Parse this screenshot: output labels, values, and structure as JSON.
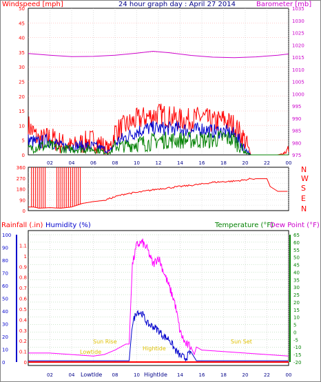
{
  "header": {
    "left_label": "Windspeed [mph]",
    "center_label": "24 hour graph day : April 27 2014",
    "right_label": "Barometer [mb]"
  },
  "dir_letters": [
    "N",
    "W",
    "S",
    "E",
    "N"
  ],
  "bottom": {
    "rain_label": "Rainfall (.in)",
    "hum_label": "Humidity (%)",
    "temp_label": "Temperature (°F)",
    "dew_label": "Dew Point (°F)",
    "sunrise": "Sun Rise",
    "sunset": "Sun Set",
    "lowtide": "Lowtide",
    "hightide": "Hightide",
    "lowtide_axis": "LowtIde",
    "hightide_axis": "HightIde"
  },
  "colors": {
    "wind": "#ff0000",
    "gust": "#0000cc",
    "avg": "#008000",
    "baro": "#cc00cc",
    "hum": "#0000cc",
    "temp": "#008000",
    "dew": "#ff00ff",
    "rain": "#ff0000",
    "header_wind": "#ff0000",
    "header_baro": "#cc00cc"
  },
  "chart_data": [
    {
      "type": "line",
      "title": "24 hour graph day : April 27 2014",
      "xlabel": "",
      "x_ticks": [
        "02",
        "04",
        "06",
        "08",
        "10",
        "12",
        "14",
        "16",
        "18",
        "20",
        "22",
        "00"
      ],
      "ylabel": "Windspeed [mph]",
      "ylim": [
        0,
        50
      ],
      "y_ticks": [
        "0",
        "5",
        "10",
        "15",
        "20",
        "25",
        "30",
        "35",
        "40",
        "45",
        "50"
      ],
      "y2label": "Barometer [mb]",
      "y2lim": [
        975,
        1035
      ],
      "y2_ticks": [
        "975",
        "980",
        "985",
        "990",
        "995",
        "1000",
        "1005",
        "1010",
        "1015",
        "1020",
        "1025",
        "1030",
        "1035"
      ],
      "series": [
        {
          "name": "wind",
          "axis": "y",
          "x": [
            0,
            1,
            2,
            3,
            4,
            5,
            6,
            7,
            7.5,
            8,
            9,
            10,
            11,
            12,
            13,
            14,
            15,
            16,
            17,
            18,
            19,
            20,
            20.5,
            21,
            22,
            23,
            23.5,
            24
          ],
          "values": [
            10,
            5,
            6,
            4,
            3,
            4,
            5,
            3,
            2,
            8,
            10,
            12,
            13,
            14,
            13,
            12,
            12,
            13,
            11,
            12,
            10,
            5,
            0,
            0,
            0,
            0,
            0.5,
            2
          ]
        },
        {
          "name": "gust",
          "axis": "y",
          "x": [
            0,
            1,
            2,
            3,
            4,
            5,
            6,
            7,
            7.5,
            8,
            9,
            10,
            11,
            12,
            13,
            14,
            15,
            16,
            17,
            18,
            19,
            20,
            20.5,
            24
          ],
          "values": [
            5,
            4,
            5,
            3,
            3,
            3,
            3,
            2,
            1,
            4,
            6,
            8,
            9,
            9,
            9,
            9,
            8,
            9,
            8,
            8,
            7,
            2,
            0,
            0
          ]
        },
        {
          "name": "avg",
          "axis": "y",
          "x": [
            0,
            1,
            2,
            3,
            4,
            5,
            6,
            7,
            7.5,
            8,
            9,
            10,
            11,
            12,
            13,
            14,
            15,
            16,
            17,
            18,
            19,
            20,
            20.5,
            24
          ],
          "values": [
            2,
            3,
            3,
            2,
            2,
            2,
            2,
            1,
            0.5,
            3,
            3,
            4,
            4,
            5,
            5,
            5,
            5,
            5,
            5,
            6,
            5,
            1,
            0,
            0
          ]
        },
        {
          "name": "barometer",
          "axis": "y2",
          "x": [
            0,
            2,
            4,
            6,
            8,
            10,
            11.5,
            13,
            15,
            17,
            19,
            21,
            23,
            24
          ],
          "values": [
            1016.5,
            1015.8,
            1015.2,
            1015.3,
            1015.8,
            1016.6,
            1017.4,
            1016.8,
            1015.7,
            1015.0,
            1014.8,
            1015.1,
            1015.8,
            1016.3
          ]
        }
      ]
    },
    {
      "type": "line",
      "xlabel": "",
      "ylabel": "",
      "ylim": [
        0,
        360
      ],
      "y_ticks": [
        "0",
        "45",
        "90",
        "135",
        "180",
        "225",
        "270",
        "315",
        "360"
      ],
      "series": [
        {
          "name": "direction",
          "x": [
            0,
            0.5,
            1,
            2,
            3,
            4,
            5,
            6,
            7,
            8,
            9,
            10,
            11,
            12,
            13,
            14,
            15,
            16,
            17,
            18,
            19,
            20,
            20.5,
            21.5,
            22,
            22.3,
            23,
            24
          ],
          "values": [
            30,
            30,
            20,
            25,
            20,
            30,
            60,
            75,
            85,
            115,
            140,
            150,
            165,
            180,
            190,
            200,
            210,
            220,
            235,
            240,
            245,
            255,
            265,
            265,
            265,
            200,
            160,
            160
          ]
        }
      ]
    },
    {
      "type": "line",
      "xlabel": "",
      "x_ticks": [
        "02",
        "04",
        "06",
        "08",
        "10",
        "12",
        "14",
        "16",
        "18",
        "20",
        "22",
        "00"
      ],
      "ylabel": "Rainfall (.in)",
      "ylim": [
        0,
        1.2
      ],
      "y_ticks": [
        "0",
        "0.1",
        "0.2",
        "0.3",
        "0.4",
        "0.5",
        "0.6",
        "0.7",
        "0.8",
        "0.9",
        "1",
        "1.1"
      ],
      "y2label": "Humidity (%)",
      "y2lim": [
        0,
        100
      ],
      "y2_ticks": [
        "0",
        "10",
        "20",
        "30",
        "40",
        "50",
        "60",
        "70",
        "80",
        "90",
        "100"
      ],
      "y3label": "Temperature (°F)",
      "y3lim": [
        -20,
        65
      ],
      "y3_ticks": [
        "-20",
        "-15",
        "-10",
        "-5",
        "0",
        "5",
        "10",
        "15",
        "20",
        "25",
        "30",
        "35",
        "40",
        "45",
        "50",
        "55",
        "60",
        "65"
      ],
      "series": [
        {
          "name": "rain",
          "axis": "rain",
          "x": [
            0,
            24
          ],
          "values": [
            0,
            0
          ]
        },
        {
          "name": "dew_point",
          "axis": "temp",
          "x": [
            0,
            2,
            4,
            6,
            7,
            8,
            9,
            9.3,
            9.6,
            10,
            10.5,
            11,
            11.5,
            12,
            12.5,
            13,
            13.5,
            14,
            14.5,
            15,
            15.3,
            15.5,
            16,
            18,
            20,
            22,
            24
          ],
          "values": [
            -14,
            -14,
            -15,
            -16,
            -15,
            -12,
            -8,
            -8,
            45,
            58,
            60,
            55,
            45,
            50,
            40,
            30,
            20,
            0,
            -8,
            -10,
            -15,
            -10,
            -12,
            -13,
            -14,
            -15,
            -16
          ]
        },
        {
          "name": "humidity",
          "axis": "hum",
          "x": [
            0,
            2,
            4,
            6,
            7,
            8,
            9,
            9.3,
            9.6,
            10,
            10.5,
            11,
            11.5,
            12,
            12.5,
            13,
            13.5,
            14,
            14.5,
            15,
            15.5,
            16,
            18,
            20,
            22,
            24
          ],
          "values": [
            1,
            1,
            1,
            1,
            1,
            1,
            1,
            1,
            30,
            40,
            38,
            30,
            28,
            25,
            20,
            18,
            10,
            5,
            3,
            8,
            1,
            1,
            1,
            1,
            1,
            1
          ]
        }
      ]
    }
  ]
}
